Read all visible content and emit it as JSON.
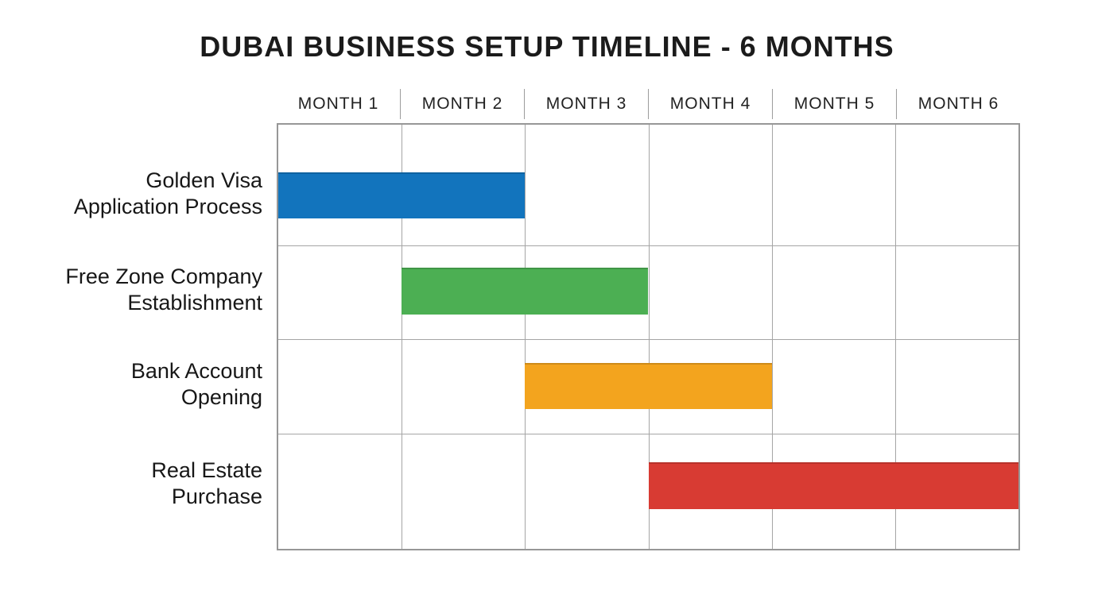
{
  "chart_data": {
    "type": "gantt",
    "title": "DUBAI BUSINESS SETUP TIMELINE - 6 MONTHS",
    "months_total": 6,
    "categories": [
      "MONTH 1",
      "MONTH 2",
      "MONTH 3",
      "MONTH 4",
      "MONTH 5",
      "MONTH 6"
    ],
    "x_range": [
      1,
      6
    ],
    "grid": true,
    "legend": false,
    "tasks": [
      {
        "name": "Golden Visa Application Process",
        "label_line1": "Golden Visa",
        "label_line2": "Application Process",
        "start_month": 1,
        "end_month": 2,
        "duration_months": 2,
        "color": "#1274bd"
      },
      {
        "name": "Free Zone Company Establishment",
        "label_line1": "Free Zone Company",
        "label_line2": "Establishment",
        "start_month": 2,
        "end_month": 3,
        "duration_months": 2,
        "color": "#4caf53"
      },
      {
        "name": "Bank Account Opening",
        "label_line1": "Bank Account",
        "label_line2": "Opening",
        "start_month": 3,
        "end_month": 4,
        "duration_months": 2,
        "color": "#f3a41e"
      },
      {
        "name": "Real Estate Purchase",
        "label_line1": "Real Estate",
        "label_line2": "Purchase",
        "start_month": 4,
        "end_month": 6,
        "duration_months": 3,
        "color": "#d83b33"
      }
    ],
    "style": {
      "grid_line_color": "#a5a5a5",
      "text_color": "#1c1c1c",
      "background": "#ffffff"
    }
  }
}
